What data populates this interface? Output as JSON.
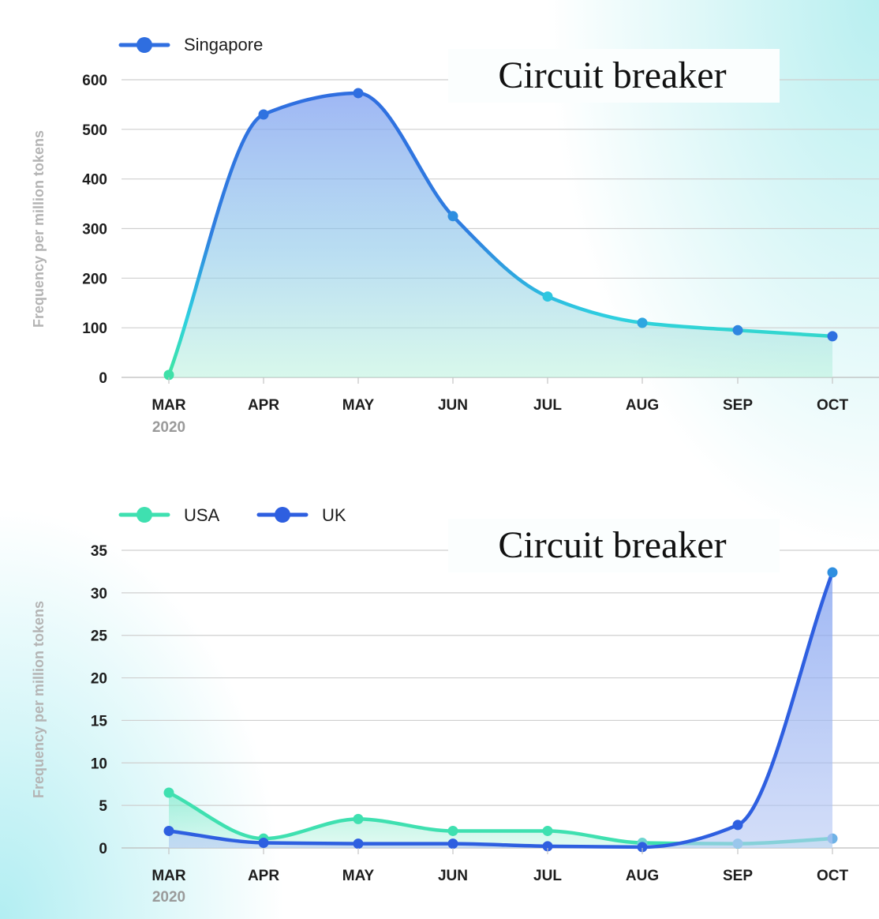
{
  "chart_data": [
    {
      "type": "area",
      "categories": [
        "MAR",
        "APR",
        "MAY",
        "JUN",
        "JUL",
        "AUG",
        "SEP",
        "OCT"
      ],
      "year_label": "2020",
      "ylabel": "Frequency per million tokens",
      "ylim": [
        0,
        600
      ],
      "yticks": [
        0,
        100,
        200,
        300,
        400,
        500,
        600
      ],
      "grid": true,
      "legend_position": "top-left",
      "annotation": "Circuit breaker",
      "series": [
        {
          "name": "Singapore",
          "values": [
            5,
            530,
            573,
            325,
            163,
            110,
            95,
            83
          ],
          "color": "#2f6ee0",
          "start_color": "#3fe0a8"
        }
      ]
    },
    {
      "type": "area",
      "categories": [
        "MAR",
        "APR",
        "MAY",
        "JUN",
        "JUL",
        "AUG",
        "SEP",
        "OCT"
      ],
      "year_label": "2020",
      "ylabel": "Frequency per million tokens",
      "ylim": [
        0,
        35
      ],
      "yticks": [
        0,
        5,
        10,
        15,
        20,
        25,
        30,
        35
      ],
      "grid": true,
      "legend_position": "top-left",
      "annotation": "Circuit breaker",
      "series": [
        {
          "name": "USA",
          "values": [
            6.5,
            1.1,
            3.4,
            2.0,
            2.0,
            0.6,
            0.5,
            1.1
          ],
          "color": "#3fe0b0"
        },
        {
          "name": "UK",
          "values": [
            2.0,
            0.6,
            0.5,
            0.5,
            0.2,
            0.1,
            2.7,
            32.4
          ],
          "color": "#2e5fe0"
        }
      ]
    }
  ]
}
